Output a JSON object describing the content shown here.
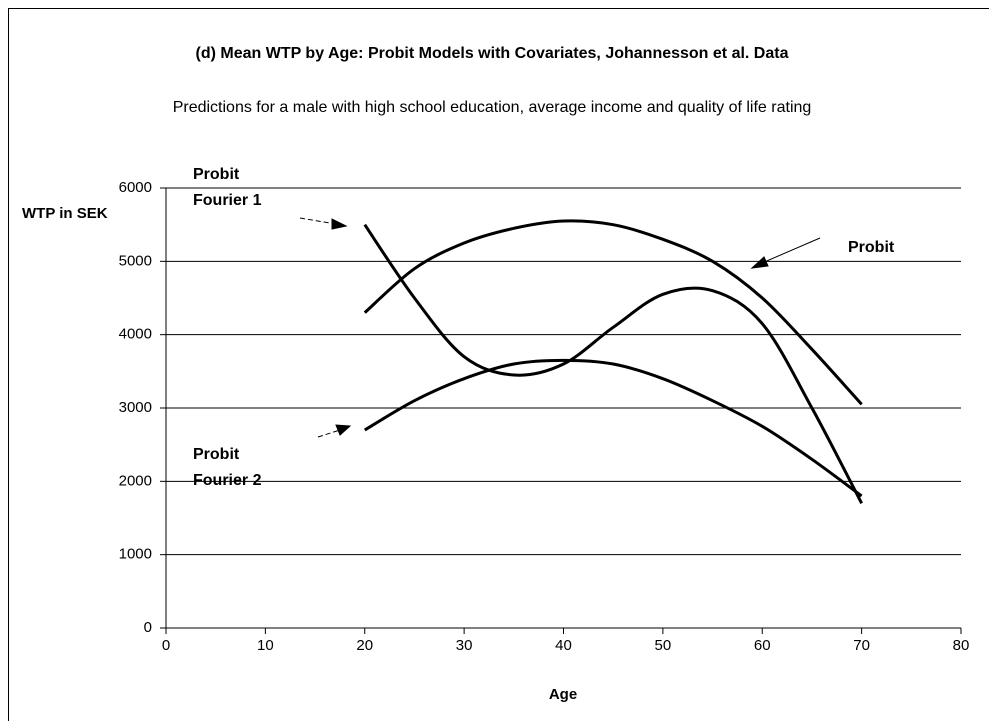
{
  "chart_data": {
    "type": "line",
    "title": "(d) Mean WTP by Age: Probit Models with Covariates, Johannesson et al. Data",
    "subtitle": "Predictions for a male with high school education, average income and quality of life rating",
    "x_label": "Age",
    "y_label": "WTP in SEK",
    "x": [
      20,
      25,
      30,
      35,
      40,
      45,
      50,
      55,
      60,
      65,
      70
    ],
    "series": [
      {
        "name": "Probit",
        "color": "#000000",
        "values": [
          4300,
          4900,
          5250,
          5450,
          5550,
          5500,
          5300,
          5000,
          4500,
          3800,
          3050
        ]
      },
      {
        "name": "Probit Fourier 1",
        "color": "#000000",
        "values": [
          5500,
          4500,
          3700,
          3450,
          3600,
          4100,
          4550,
          4600,
          4150,
          3000,
          1700
        ]
      },
      {
        "name": "Probit Fourier 2",
        "color": "#000000",
        "values": [
          2700,
          3100,
          3400,
          3600,
          3650,
          3600,
          3400,
          3100,
          2750,
          2300,
          1800
        ]
      }
    ],
    "xlim": [
      0,
      80
    ],
    "xticks": [
      0,
      10,
      20,
      30,
      40,
      50,
      60,
      70,
      80
    ],
    "ylim": [
      0,
      6000
    ],
    "yticks": [
      0,
      1000,
      2000,
      3000,
      4000,
      5000,
      6000
    ],
    "grid": true
  }
}
